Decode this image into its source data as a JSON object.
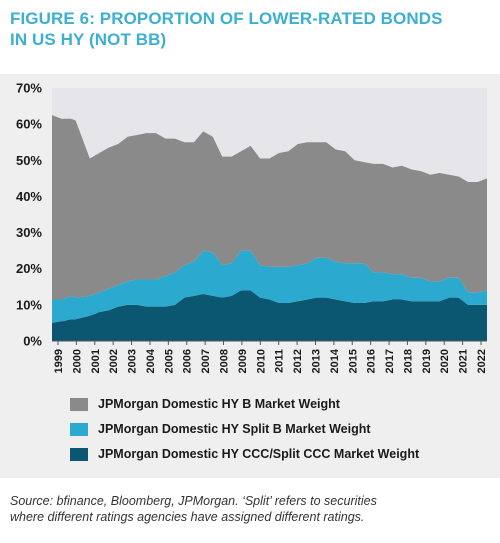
{
  "title": {
    "line1": "FIGURE 6: PROPORTION OF LOWER-RATED BONDS",
    "line2": "IN US HY (NOT BB)"
  },
  "source": {
    "line1": "Source: bfinance, Bloomberg, JPMorgan. ‘Split’ refers to securities",
    "line2": "where different ratings agencies have assigned different ratings."
  },
  "colors": {
    "background_panel": "#efefef",
    "plot_area": "#e6e6ea",
    "title": "#3bb0d1",
    "b": "#8a8a8a",
    "split_b": "#2ca9cf",
    "ccc": "#0b5670"
  },
  "chart_data": {
    "type": "area",
    "stacked": true,
    "x_tick_labels": [
      "1999",
      "2000",
      "2001",
      "2002",
      "2003",
      "2004",
      "2005",
      "2006",
      "2007",
      "2008",
      "2009",
      "2010",
      "2011",
      "2012",
      "2013",
      "2014",
      "2015",
      "2016",
      "2017",
      "2018",
      "2019",
      "2020",
      "2021",
      "2022"
    ],
    "y_tick_labels": [
      "0%",
      "10%",
      "20%",
      "30%",
      "40%",
      "50%",
      "60%",
      "70%"
    ],
    "ylim": [
      0,
      70
    ],
    "x": [
      2000.0,
      2000.5,
      2000.6,
      2001.0,
      2001.25,
      2002.0,
      2002.5,
      2003.0,
      2003.5,
      2004.0,
      2004.5,
      2005.0,
      2005.5,
      2006.0,
      2006.5,
      2007.0,
      2007.5,
      2008.0,
      2008.5,
      2009.0,
      2009.5,
      2010.0,
      2010.5,
      2011.0,
      2011.5,
      2012.0,
      2012.5,
      2013.0,
      2013.5,
      2014.0,
      2014.5,
      2015.0,
      2015.5,
      2016.0,
      2016.5,
      2017.0,
      2017.5,
      2018.0,
      2018.5,
      2019.0,
      2019.5,
      2020.0,
      2020.5,
      2021.0,
      2021.5,
      2022.0,
      2022.5,
      2023.0
    ],
    "series": [
      {
        "name": "JPMorgan Domestic HY B Market Weight",
        "color": "#8a8a8a",
        "values": [
          51,
          50,
          50,
          49,
          49,
          38,
          38.5,
          39,
          39,
          40,
          40,
          40.5,
          40.5,
          38,
          37,
          34,
          33,
          33,
          32,
          30,
          29.5,
          27.5,
          29,
          29.5,
          30,
          31.5,
          32,
          33.5,
          33.5,
          32,
          32,
          31,
          31,
          28.5,
          28,
          30,
          30,
          29.5,
          30,
          30,
          29.5,
          29.5,
          30,
          28.5,
          28,
          30.5,
          30.5,
          31
        ]
      },
      {
        "name": "JPMorgan Domestic HY Split B Market Weight",
        "color": "#2ca9cf",
        "values": [
          6.5,
          6,
          6,
          6.5,
          6,
          5.5,
          5.5,
          6,
          6,
          6.5,
          7,
          7.5,
          7.5,
          8.5,
          9,
          9,
          9.5,
          12,
          12,
          9,
          9,
          11,
          11,
          9,
          9,
          10,
          10,
          10,
          10,
          11,
          11,
          10.5,
          10.5,
          11,
          11,
          8,
          8,
          7,
          7,
          6.5,
          6.5,
          5.5,
          5.5,
          5.5,
          5.5,
          3.5,
          3.5,
          4
        ]
      },
      {
        "name": "JPMorgan Domestic HY CCC/Split CCC Market Weight",
        "color": "#0b5670",
        "values": [
          5,
          5.5,
          5.5,
          6,
          6,
          7,
          8,
          8.5,
          9.5,
          10,
          10,
          9.5,
          9.5,
          9.5,
          10,
          12,
          12.5,
          13,
          12.5,
          12,
          12.5,
          14,
          14,
          12,
          11.5,
          10.5,
          10.5,
          11,
          11.5,
          12,
          12,
          11.5,
          11,
          10.5,
          10.5,
          11,
          11,
          11.5,
          11.5,
          11,
          11,
          11,
          11,
          12,
          12,
          10,
          10,
          10
        ]
      }
    ],
    "legend_order": [
      "JPMorgan Domestic HY B Market Weight",
      "JPMorgan Domestic HY Split B Market Weight",
      "JPMorgan Domestic HY CCC/Split CCC Market Weight"
    ],
    "legend_position": "bottom",
    "grid": false
  }
}
